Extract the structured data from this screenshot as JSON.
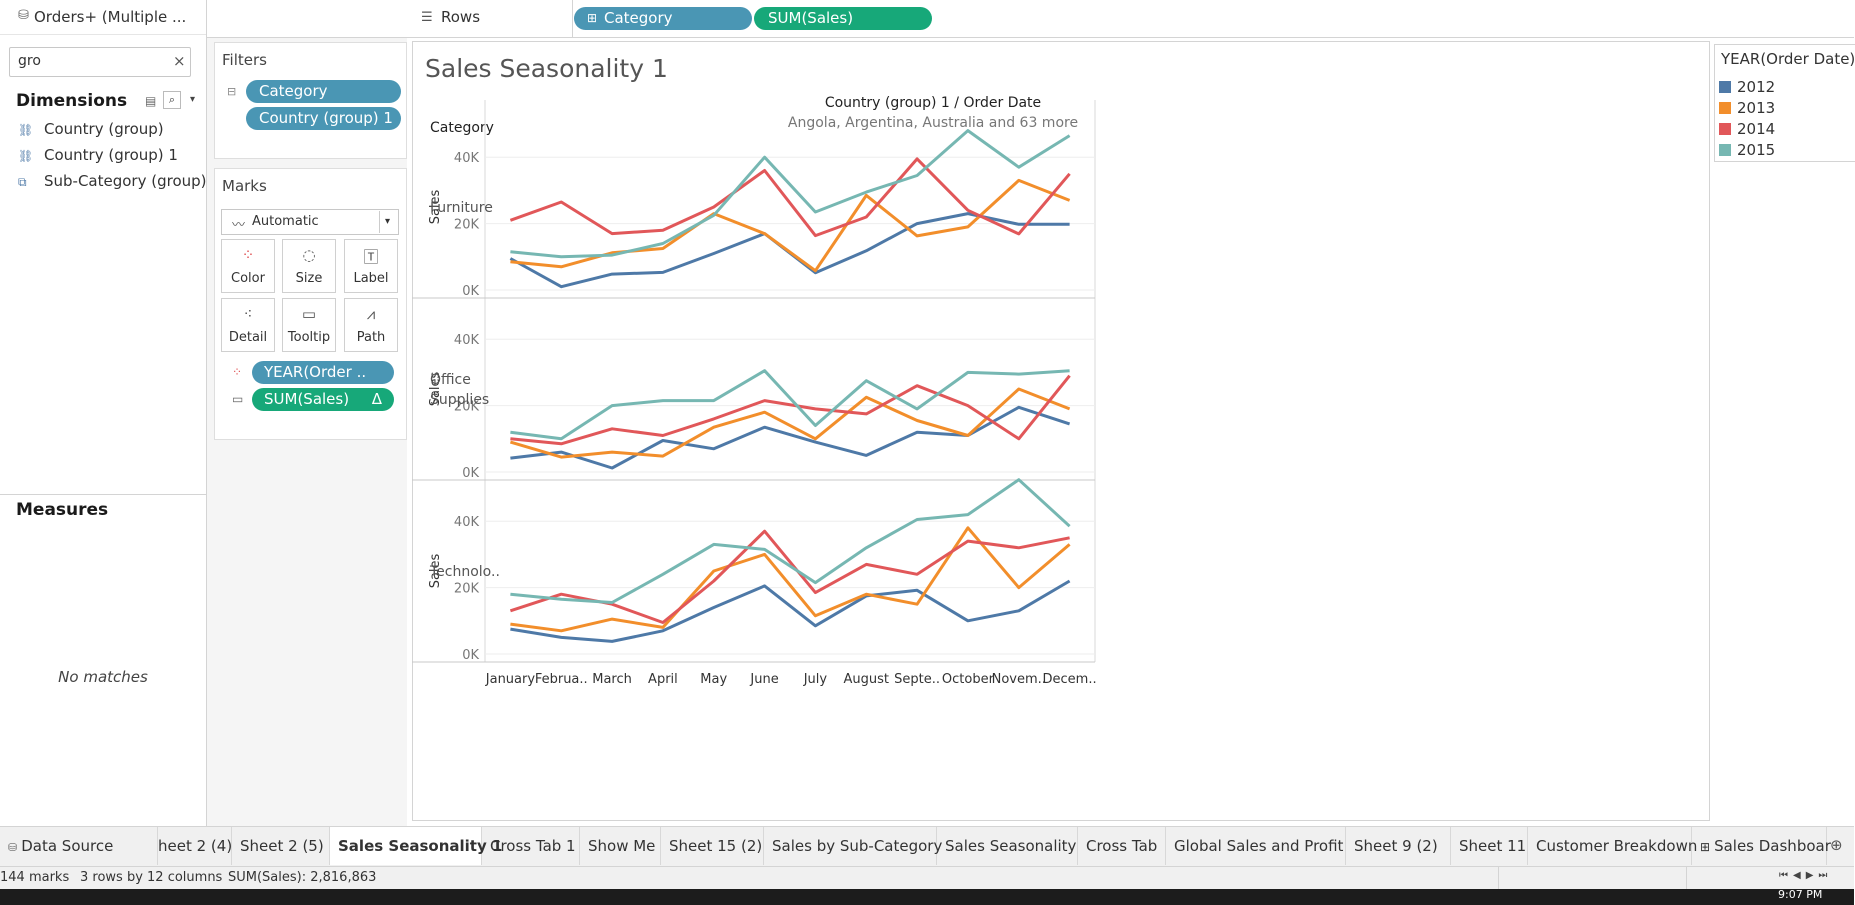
{
  "datasource": {
    "name": "Orders+ (Multiple ...",
    "icon": "datasource-icon"
  },
  "search": {
    "value": "gro",
    "clear": "×"
  },
  "dimensions": {
    "title": "Dimensions",
    "items": [
      {
        "label": "Country (group)",
        "icon": "group-icon"
      },
      {
        "label": "Country (group) 1",
        "icon": "group-icon"
      },
      {
        "label": "Sub-Category (group)",
        "icon": "paperclip-icon"
      }
    ]
  },
  "measures": {
    "title": "Measures",
    "empty": "No matches"
  },
  "filters": {
    "title": "Filters",
    "pills": [
      "Category",
      "Country (group) 1"
    ]
  },
  "marks": {
    "title": "Marks",
    "type": "Automatic",
    "buttons": [
      "Color",
      "Size",
      "Label",
      "Detail",
      "Tooltip",
      "Path"
    ],
    "pills": [
      {
        "label": "YEAR(Order ..",
        "kind": "color"
      },
      {
        "label": "SUM(Sales)",
        "kind": "tooltip",
        "suffix": "Δ"
      }
    ]
  },
  "rows_shelf": {
    "label": "Rows",
    "pills": [
      "Category",
      "SUM(Sales)"
    ]
  },
  "sheet": {
    "title": "Sales Seasonality 1",
    "col_header": "Country (group) 1 / Order Date",
    "col_subheader": "Angola, Argentina, Australia and 63 more",
    "row_header": "Category",
    "measure_label": "Sales"
  },
  "legend": {
    "title": "YEAR(Order Date)",
    "items": [
      {
        "label": "2012",
        "color": "#4e79a7"
      },
      {
        "label": "2013",
        "color": "#f28e2b"
      },
      {
        "label": "2014",
        "color": "#e15759"
      },
      {
        "label": "2015",
        "color": "#76b7b2"
      }
    ]
  },
  "chart_data": {
    "type": "line",
    "categories": [
      "January",
      "Februa..",
      "March",
      "April",
      "May",
      "June",
      "July",
      "August",
      "Septe..",
      "October",
      "Novem..",
      "Decem.."
    ],
    "ylim": [
      0,
      50000
    ],
    "yticks": [
      "0K",
      "20K",
      "40K"
    ],
    "ylabel": "Sales",
    "panels": [
      {
        "category": "Furniture",
        "series": [
          {
            "name": "2012",
            "values": [
              9500,
              1000,
              4800,
              5300,
              11000,
              17000,
              5200,
              11800,
              20000,
              23000,
              19800,
              19800
            ]
          },
          {
            "name": "2013",
            "values": [
              8500,
              7000,
              11200,
              12500,
              23000,
              17000,
              5800,
              28500,
              16300,
              19000,
              33000,
              27000
            ]
          },
          {
            "name": "2014",
            "values": [
              21000,
              26500,
              17000,
              18000,
              25000,
              36000,
              16400,
              22000,
              39500,
              24000,
              16900,
              35000
            ]
          },
          {
            "name": "2015",
            "values": [
              11500,
              10000,
              10500,
              14000,
              22500,
              40000,
              23500,
              29500,
              34500,
              48000,
              37000,
              46500
            ]
          }
        ]
      },
      {
        "category": "Office Supplies",
        "series": [
          {
            "name": "2012",
            "values": [
              4200,
              6000,
              1200,
              9500,
              7000,
              13500,
              9000,
              5000,
              12000,
              11000,
              19500,
              14500
            ]
          },
          {
            "name": "2013",
            "values": [
              9000,
              4500,
              6000,
              4800,
              13500,
              18000,
              10000,
              22500,
              15500,
              11000,
              25000,
              19000
            ]
          },
          {
            "name": "2014",
            "values": [
              10000,
              8500,
              13000,
              11000,
              16000,
              21500,
              19000,
              17500,
              26000,
              20000,
              10000,
              29000
            ]
          },
          {
            "name": "2015",
            "values": [
              12000,
              10000,
              20000,
              21500,
              21500,
              30500,
              14000,
              27500,
              19000,
              30000,
              29500,
              30500
            ]
          }
        ]
      },
      {
        "category": "Technolo..",
        "series": [
          {
            "name": "2012",
            "values": [
              7500,
              5000,
              3800,
              7000,
              14000,
              20500,
              8500,
              17500,
              19200,
              10000,
              13000,
              22000
            ]
          },
          {
            "name": "2013",
            "values": [
              9000,
              7000,
              10500,
              8000,
              25000,
              30000,
              11500,
              18000,
              15000,
              38000,
              20000,
              33000
            ]
          },
          {
            "name": "2014",
            "values": [
              13000,
              18000,
              15000,
              9500,
              22000,
              37000,
              18500,
              27000,
              24000,
              34000,
              32000,
              35000
            ]
          },
          {
            "name": "2015",
            "values": [
              18000,
              16500,
              15500,
              24000,
              33000,
              31500,
              21500,
              32000,
              40500,
              42000,
              52500,
              38500
            ]
          }
        ]
      }
    ]
  },
  "tabs": [
    {
      "label": "Data Source",
      "icon": "datasource-icon"
    },
    {
      "label": "heet 2 (4)"
    },
    {
      "label": "Sheet 2 (5)"
    },
    {
      "label": "Sales Seasonality 1",
      "active": true
    },
    {
      "label": "Cross Tab 1"
    },
    {
      "label": "Show Me"
    },
    {
      "label": "Sheet 15 (2)"
    },
    {
      "label": "Sales by Sub-Category"
    },
    {
      "label": "Sales Seasonality"
    },
    {
      "label": "Cross Tab"
    },
    {
      "label": "Global Sales and Profit"
    },
    {
      "label": "Sheet 9 (2)"
    },
    {
      "label": "Sheet 11"
    },
    {
      "label": "Customer Breakdown"
    },
    {
      "label": "Sales Dashboar",
      "icon": "dashboard-icon"
    }
  ],
  "status": {
    "marks": "144 marks",
    "dims": "3 rows by 12 columns",
    "sum": "SUM(Sales): 2,816,863"
  },
  "clock": "9:07 PM"
}
